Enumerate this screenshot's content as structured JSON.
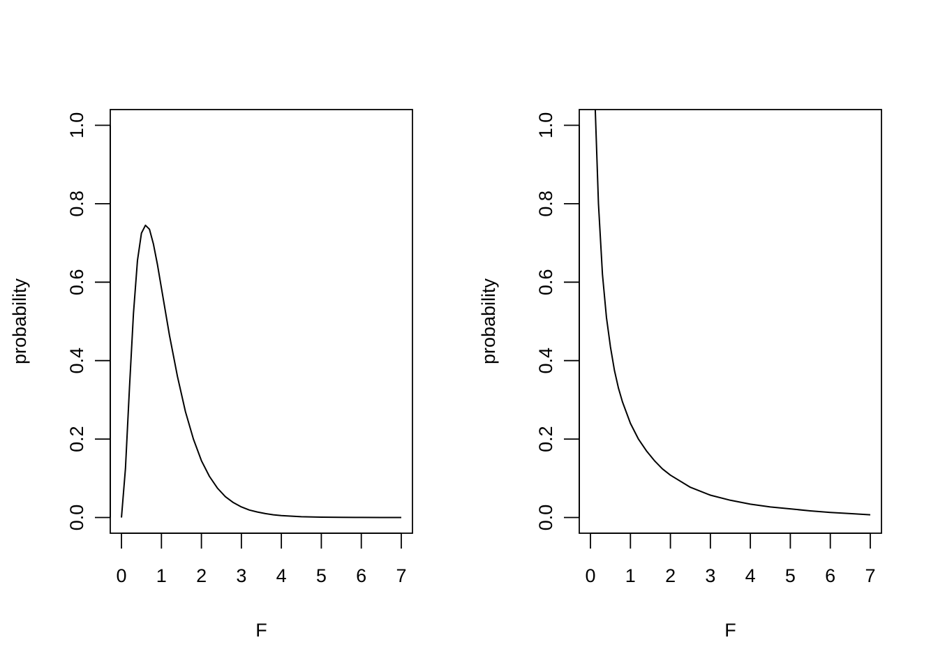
{
  "chart_data": [
    {
      "type": "line",
      "xlabel": "F",
      "ylabel": "probability",
      "xlim": [
        -0.28,
        7.28
      ],
      "ylim": [
        -0.04,
        1.04
      ],
      "x_ticks": [
        0,
        1,
        2,
        3,
        4,
        5,
        6,
        7
      ],
      "x_tick_labels": [
        "0",
        "1",
        "2",
        "3",
        "4",
        "5",
        "6",
        "7"
      ],
      "y_ticks": [
        0.0,
        0.2,
        0.4,
        0.6,
        0.8,
        1.0
      ],
      "y_tick_labels": [
        "0.0",
        "0.2",
        "0.4",
        "0.6",
        "0.8",
        "1.0"
      ],
      "grid": false,
      "legend": "none",
      "series": [
        {
          "x": [
            0,
            0.1,
            0.2,
            0.3,
            0.4,
            0.5,
            0.6,
            0.7,
            0.8,
            0.9,
            1.0,
            1.2,
            1.4,
            1.6,
            1.8,
            2.0,
            2.2,
            2.4,
            2.6,
            2.8,
            3.0,
            3.2,
            3.4,
            3.6,
            3.8,
            4.0,
            4.5,
            5.0,
            5.5,
            6.0,
            6.5,
            7.0
          ],
          "y": [
            0.0,
            0.125,
            0.33,
            0.52,
            0.655,
            0.725,
            0.745,
            0.735,
            0.697,
            0.645,
            0.585,
            0.465,
            0.36,
            0.27,
            0.2,
            0.145,
            0.105,
            0.075,
            0.053,
            0.038,
            0.027,
            0.019,
            0.014,
            0.01,
            0.007,
            0.005,
            0.002,
            0.001,
            0.0005,
            0.0002,
            0.0001,
            0.0
          ]
        }
      ]
    },
    {
      "type": "line",
      "xlabel": "F",
      "ylabel": "probability",
      "xlim": [
        -0.28,
        7.28
      ],
      "ylim": [
        -0.04,
        1.04
      ],
      "x_ticks": [
        0,
        1,
        2,
        3,
        4,
        5,
        6,
        7
      ],
      "x_tick_labels": [
        "0",
        "1",
        "2",
        "3",
        "4",
        "5",
        "6",
        "7"
      ],
      "y_ticks": [
        0.0,
        0.2,
        0.4,
        0.6,
        0.8,
        1.0
      ],
      "y_tick_labels": [
        "0.0",
        "0.2",
        "0.4",
        "0.6",
        "0.8",
        "1.0"
      ],
      "grid": false,
      "legend": "none",
      "series": [
        {
          "x": [
            0.12,
            0.15,
            0.2,
            0.3,
            0.4,
            0.5,
            0.6,
            0.7,
            0.8,
            1.0,
            1.2,
            1.4,
            1.6,
            1.8,
            2.0,
            2.5,
            3.0,
            3.5,
            4.0,
            4.5,
            5.0,
            5.5,
            6.0,
            6.5,
            7.0
          ],
          "y": [
            1.04,
            0.95,
            0.8,
            0.62,
            0.51,
            0.435,
            0.375,
            0.33,
            0.295,
            0.24,
            0.2,
            0.17,
            0.145,
            0.124,
            0.108,
            0.077,
            0.057,
            0.044,
            0.034,
            0.027,
            0.022,
            0.017,
            0.013,
            0.01,
            0.007
          ]
        }
      ]
    }
  ]
}
